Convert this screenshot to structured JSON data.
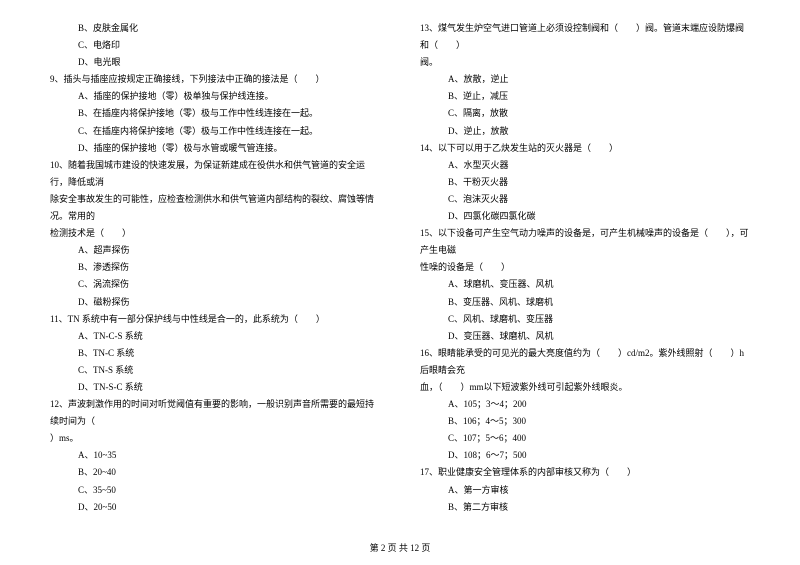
{
  "left": {
    "q8_b": "B、皮肤金属化",
    "q8_c": "C、电烙印",
    "q8_d": "D、电光眼",
    "q9": "9、插头与插座应按规定正确接线，下列接法中正确的接法是（　　）",
    "q9_a": "A、插座的保护接地（零）极单独与保护线连接。",
    "q9_b": "B、在插座内将保护接地（零）极与工作中性线连接在一起。",
    "q9_c": "C、在插座内将保护接地（零）极与工作中性线连接在一起。",
    "q9_d": "D、插座的保护接地（零）极与水管或暖气管连接。",
    "q10_line1": "10、随着我国城市建设的快速发展，为保证新建成在役供水和供气管道的安全运行，降低或消",
    "q10_line2": "除安全事故发生的可能性，应检查检测供水和供气管道内部结构的裂纹、腐蚀等情况。常用的",
    "q10_line3": "检测技术是（　　）",
    "q10_a": "A、超声探伤",
    "q10_b": "B、渗透探伤",
    "q10_c": "C、涡流探伤",
    "q10_d": "D、磁粉探伤",
    "q11": "11、TN 系统中有一部分保护线与中性线是合一的，此系统为（　　）",
    "q11_a": "A、TN-C-S 系统",
    "q11_b": "B、TN-C 系统",
    "q11_c": "C、TN-S 系统",
    "q11_d": "D、TN-S-C 系统",
    "q12_line1": "12、声波刺激作用的时间对听觉阈值有重要的影响，一般识别声音所需要的最短持续时间为（",
    "q12_line2": "）ms。",
    "q12_a": "A、10~35",
    "q12_b": "B、20~40",
    "q12_c": "C、35~50",
    "q12_d": "D、20~50"
  },
  "right": {
    "q13_line1": "13、煤气发生炉空气进口管道上必须设控制阀和（　　）阀。管道末端应设防爆阀和（　　）",
    "q13_line2": "阀。",
    "q13_a": "A、放散，逆止",
    "q13_b": "B、逆止，减压",
    "q13_c": "C、隔离，放散",
    "q13_d": "D、逆止，放散",
    "q14": "14、以下可以用于乙炔发生站的灭火器是（　　）",
    "q14_a": "A、水型灭火器",
    "q14_b": "B、干粉灭火器",
    "q14_c": "C、泡沫灭火器",
    "q14_d": "D、四氯化碳四氯化碳",
    "q15_line1": "15、以下设备可产生空气动力噪声的设备是，可产生机械噪声的设备是（　　），可产生电磁",
    "q15_line2": "性噪的设备是（　　）",
    "q15_a": "A、球磨机、变压器、风机",
    "q15_b": "B、变压器、风机、球磨机",
    "q15_c": "C、风机、球磨机、变压器",
    "q15_d": "D、变压器、球磨机、风机",
    "q16_line1": "16、眼睛能承受的可见光的最大亮度值约为（　　）cd/m2。紫外线照射（　　）h后眼睛会充",
    "q16_line2": "血，（　　）mm以下短波紫外线可引起紫外线眼炎。",
    "q16_a": "A、105；3～4；200",
    "q16_b": "B、106；4～5；300",
    "q16_c": "C、107；5～6；400",
    "q16_d": "D、108；6～7；500",
    "q17": "17、职业健康安全管理体系的内部审核又称为（　　）",
    "q17_a": "A、第一方审核",
    "q17_b": "B、第二方审核"
  },
  "footer": "第 2 页 共 12 页"
}
